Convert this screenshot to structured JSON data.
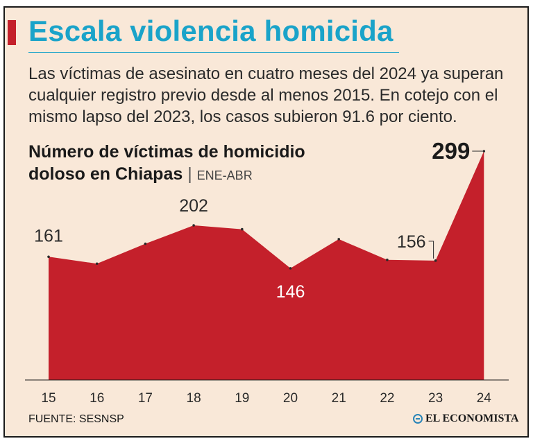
{
  "header": {
    "title": "Escala violencia homicida",
    "subtitle": "Las víctimas de asesinato en cuatro meses del 2024 ya superan cualquier registro previo desde al menos 2015. En cotejo con el mismo lapso del 2023, los casos subieron 91.6 por ciento."
  },
  "chart_data": {
    "type": "area",
    "title": "Número de víctimas de homicidio doloso en Chiapas",
    "title_line1": "Número de víctimas de homicidio",
    "title_line2": "doloso en Chiapas",
    "separator": "|",
    "period": "ENE-ABR",
    "x": [
      "15",
      "16",
      "17",
      "18",
      "19",
      "20",
      "21",
      "22",
      "23",
      "24"
    ],
    "values": [
      161,
      152,
      178,
      202,
      197,
      146,
      184,
      157,
      156,
      299
    ],
    "labeled_points": [
      {
        "x": "15",
        "label": "161"
      },
      {
        "x": "18",
        "label": "202"
      },
      {
        "x": "20",
        "label": "146"
      },
      {
        "x": "23",
        "label": "156"
      },
      {
        "x": "24",
        "label": "299"
      }
    ],
    "ylim": [
      0,
      310
    ],
    "color": "#c4202b",
    "grid": false
  },
  "footer": {
    "source": "FUENTE: SESNSP",
    "brand": "EL ECONOMISTA",
    "brand_color": "#2a85b8"
  }
}
